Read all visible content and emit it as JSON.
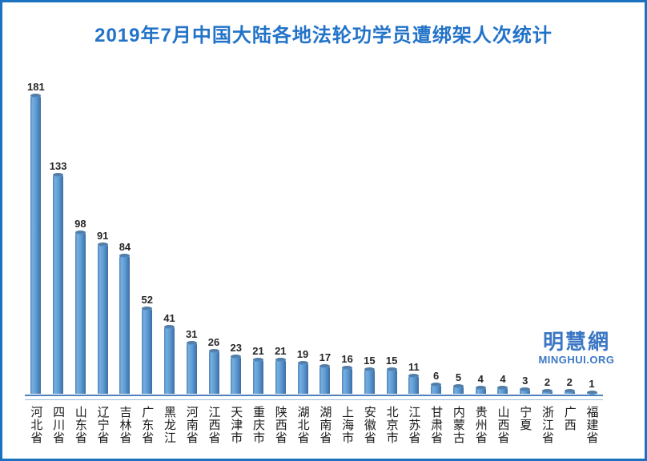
{
  "title": {
    "text": "2019年7月中国大陆各地法轮功学员遭绑架人次统计",
    "color": "#2273c8"
  },
  "watermark": {
    "logo_text": "明慧網",
    "url_text": "MINGHUI.ORG",
    "color": "#3b77c4"
  },
  "chart_data": {
    "type": "bar",
    "title": "2019年7月中国大陆各地法轮功学员遭绑架人次统计",
    "categories": [
      "河北省",
      "四川省",
      "山东省",
      "辽宁省",
      "吉林省",
      "广东省",
      "黑龙江",
      "河南省",
      "江西省",
      "天津市",
      "重庆市",
      "陕西省",
      "湖北省",
      "湖南省",
      "上海市",
      "安徽省",
      "北京市",
      "江苏省",
      "甘肃省",
      "内蒙古",
      "贵州省",
      "山西省",
      "宁夏",
      "浙江省",
      "广西",
      "福建省"
    ],
    "values": [
      181,
      133,
      98,
      91,
      84,
      52,
      41,
      31,
      26,
      23,
      21,
      21,
      19,
      17,
      16,
      15,
      15,
      11,
      6,
      5,
      4,
      4,
      3,
      2,
      2,
      1
    ],
    "xlabel": "",
    "ylabel": "",
    "ylim": [
      0,
      190
    ],
    "grid": false,
    "legend": false,
    "value_labels_shown": true,
    "bar_color": "#5b9bd5",
    "bar_edge_dark": "#3e6da0",
    "bar_cap_color": "#4f7dab",
    "axis_color": "#4f81bd",
    "axis_secondary_color": "#9dbbdc",
    "value_label_color": "#262626",
    "category_label_color": "#1a1a1a",
    "frame_border_color": "#1b72c0"
  }
}
